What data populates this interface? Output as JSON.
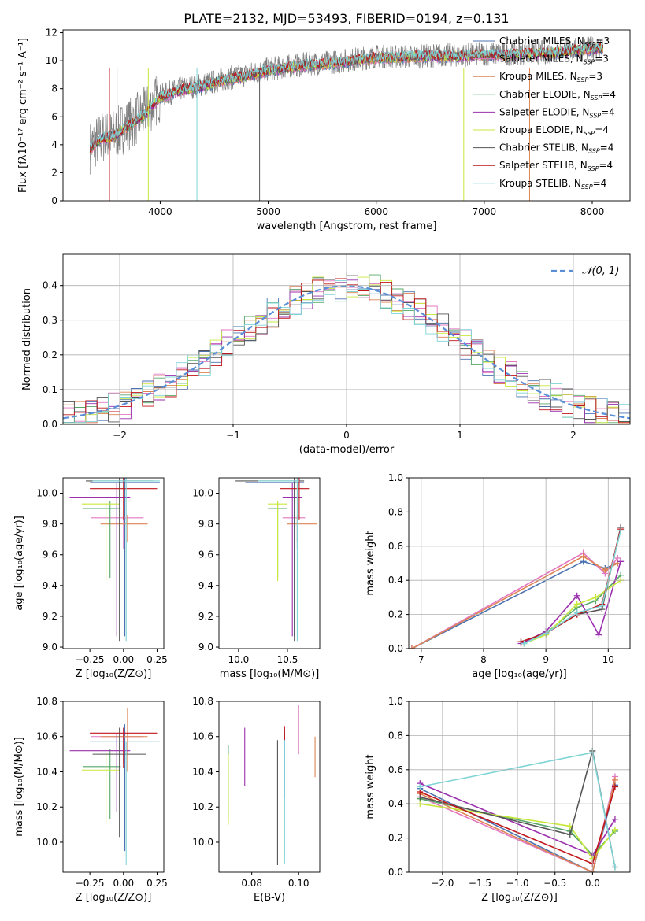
{
  "figure_title": "PLATE=2132, MJD=53493, FIBERID=0194, z=0.131",
  "series_legend": [
    {
      "name": "Chabrier MILES, N_SSP=3",
      "base": "Chabrier MILES, N",
      "sub": "SSP",
      "tail": "=3",
      "color": "#4c72b0"
    },
    {
      "name": "Salpeter MILES, N_SSP=3",
      "base": "Salpeter MILES, N",
      "sub": "SSP",
      "tail": "=3",
      "color": "#e377c2"
    },
    {
      "name": "Kroupa MILES, N_SSP=3",
      "base": "Kroupa MILES, N",
      "sub": "SSP",
      "tail": "=3",
      "color": "#dd8452"
    },
    {
      "name": "Chabrier ELODIE, N_SSP=4",
      "base": "Chabrier ELODIE, N",
      "sub": "SSP",
      "tail": "=4",
      "color": "#55a868"
    },
    {
      "name": "Salpeter ELODIE, N_SSP=4",
      "base": "Salpeter ELODIE, N",
      "sub": "SSP",
      "tail": "=4",
      "color": "#9b2fae"
    },
    {
      "name": "Kroupa ELODIE, N_SSP=4",
      "base": "Kroupa ELODIE, N",
      "sub": "SSP",
      "tail": "=4",
      "color": "#c8e83c"
    },
    {
      "name": "Chabrier STELIB, N_SSP=4",
      "base": "Chabrier STELIB, N",
      "sub": "SSP",
      "tail": "=4",
      "color": "#555555"
    },
    {
      "name": "Salpeter STELIB, N_SSP=4",
      "base": "Salpeter STELIB, N",
      "sub": "SSP",
      "tail": "=4",
      "color": "#c0151b"
    },
    {
      "name": "Kroupa STELIB, N_SSP=4",
      "base": "Kroupa STELIB, N",
      "sub": "SSP",
      "tail": "=4",
      "color": "#7fd4d6"
    }
  ],
  "chart_data": [
    {
      "id": "spectrum",
      "type": "line",
      "xlabel": "wavelength [Angstrom, rest frame]",
      "ylabel": "Flux [fλ10⁻¹⁷ erg cm⁻² s⁻¹ A⁻¹]",
      "xlim": [
        3100,
        8350
      ],
      "ylim": [
        0,
        12.2
      ],
      "xticks": [
        4000,
        5000,
        6000,
        7000,
        8000
      ],
      "yticks": [
        0,
        2,
        4,
        6,
        8,
        10,
        12
      ],
      "grid": false,
      "legend_position": "right",
      "data_series": {
        "name": "data",
        "color": "#808080",
        "x": [
          3350,
          3450,
          3550,
          3700,
          3850,
          4000,
          4200,
          4400,
          4600,
          4800,
          5000,
          5200,
          5400,
          5600,
          5800,
          6000,
          6200,
          6400,
          6600,
          6800,
          7000,
          7200,
          7400,
          7600,
          7800,
          8000,
          8100
        ],
        "y": [
          3.8,
          4.5,
          4.6,
          5.4,
          6.2,
          7.5,
          8.0,
          8.3,
          8.7,
          9.0,
          9.4,
          9.6,
          9.8,
          9.9,
          10.1,
          10.3,
          10.3,
          10.3,
          10.4,
          10.4,
          10.5,
          10.5,
          10.6,
          10.6,
          10.8,
          10.9,
          11.0
        ]
      },
      "model_x": [
        3350,
        3450,
        3550,
        3700,
        3850,
        4000,
        4200,
        4400,
        4600,
        4800,
        5000,
        5200,
        5400,
        5600,
        5800,
        6000,
        6200,
        6400,
        6600,
        6800,
        7000,
        7200,
        7400,
        7600,
        7800,
        8000,
        8100
      ],
      "model_y": [
        3.7,
        4.4,
        4.5,
        5.3,
        6.1,
        7.4,
        7.9,
        8.2,
        8.6,
        8.9,
        9.3,
        9.5,
        9.7,
        9.8,
        10.0,
        10.2,
        10.2,
        10.3,
        10.3,
        10.3,
        10.4,
        10.4,
        10.5,
        10.5,
        10.7,
        10.8,
        10.9
      ]
    },
    {
      "id": "residuals",
      "type": "histogram",
      "xlabel": "(data-model)/error",
      "ylabel": "Normed distribution",
      "xlim": [
        -2.5,
        2.5
      ],
      "ylim": [
        0,
        0.49
      ],
      "xticks": [
        -2,
        -1,
        0,
        1,
        2
      ],
      "yticks": [
        0.0,
        0.1,
        0.2,
        0.3,
        0.4
      ],
      "grid": true,
      "legend_position": "top-right",
      "normal_curve": {
        "name": "N(0,1)",
        "mean": 0,
        "sigma": 1,
        "color": "#5a8fd8"
      },
      "bin_width": 0.1,
      "bin_start": -2.5
    },
    {
      "id": "age-vs-Z",
      "type": "errorbar",
      "xlabel": "Z [log10(Z/Z⊙)]",
      "ylabel": "age [log10(age/yr)]",
      "xlim": [
        -0.45,
        0.3
      ],
      "ylim": [
        8.99,
        10.1
      ],
      "xticks": [
        -0.25,
        0.0,
        0.25
      ],
      "yticks": [
        9.0,
        9.2,
        9.4,
        9.6,
        9.8,
        10.0
      ],
      "points": [
        {
          "x": 0.01,
          "y": 10.07,
          "xerr": [
            0.26,
            0.26
          ],
          "yerr": [
            1.0,
            0.04
          ],
          "series": 0
        },
        {
          "x": 0.0,
          "y": 9.84,
          "xerr": [
            0.24,
            0.15
          ],
          "yerr": [
            0.2,
            0.0
          ],
          "series": 1
        },
        {
          "x": 0.03,
          "y": 9.8,
          "xerr": [
            0.2,
            0.15
          ],
          "yerr": [
            0.12,
            0.06
          ],
          "series": 2
        },
        {
          "x": -0.1,
          "y": 9.9,
          "xerr": [
            0.2,
            0.08
          ],
          "yerr": [
            0.45,
            0.05
          ],
          "series": 3
        },
        {
          "x": -0.05,
          "y": 9.97,
          "xerr": [
            0.35,
            0.1
          ],
          "yerr": [
            0.9,
            0.1
          ],
          "series": 4
        },
        {
          "x": -0.13,
          "y": 9.93,
          "xerr": [
            0.18,
            0.1
          ],
          "yerr": [
            0.5,
            0.02
          ],
          "series": 5
        },
        {
          "x": -0.03,
          "y": 10.08,
          "xerr": [
            0.25,
            0.25
          ],
          "yerr": [
            1.04,
            0.02
          ],
          "series": 6
        },
        {
          "x": 0.0,
          "y": 10.03,
          "xerr": [
            0.25,
            0.25
          ],
          "yerr": [
            0.2,
            0.07
          ],
          "series": 7
        },
        {
          "x": 0.02,
          "y": 10.08,
          "xerr": [
            0.25,
            0.25
          ],
          "yerr": [
            1.04,
            0.02
          ],
          "series": 8
        }
      ]
    },
    {
      "id": "age-vs-mass",
      "type": "errorbar",
      "xlabel": "mass [log10(M/M⊙)]",
      "ylabel": "",
      "xlim": [
        9.8,
        10.83
      ],
      "ylim": [
        8.99,
        10.1
      ],
      "xticks": [
        10.0,
        10.5
      ],
      "yticks": [
        9.0,
        9.2,
        9.4,
        9.6,
        9.8,
        10.0
      ],
      "points": [
        {
          "x": 10.57,
          "y": 10.07,
          "xerr": [
            0.5,
            0.1
          ],
          "yerr": [
            1.0,
            0.04
          ],
          "series": 0
        },
        {
          "x": 10.6,
          "y": 9.84,
          "xerr": [
            0.15,
            0.08
          ],
          "yerr": [
            0.2,
            0.0
          ],
          "series": 1
        },
        {
          "x": 10.6,
          "y": 9.8,
          "xerr": [
            0.1,
            0.2
          ],
          "yerr": [
            0.12,
            0.06
          ],
          "series": 2
        },
        {
          "x": 10.4,
          "y": 9.9,
          "xerr": [
            0.1,
            0.1
          ],
          "yerr": [
            0.45,
            0.05
          ],
          "series": 3
        },
        {
          "x": 10.55,
          "y": 9.97,
          "xerr": [
            0.1,
            0.1
          ],
          "yerr": [
            0.9,
            0.1
          ],
          "series": 4
        },
        {
          "x": 10.4,
          "y": 9.93,
          "xerr": [
            0.1,
            0.1
          ],
          "yerr": [
            0.5,
            0.02
          ],
          "series": 5
        },
        {
          "x": 10.57,
          "y": 10.08,
          "xerr": [
            0.6,
            0.1
          ],
          "yerr": [
            1.04,
            0.02
          ],
          "series": 6
        },
        {
          "x": 10.62,
          "y": 10.03,
          "xerr": [
            0.2,
            0.1
          ],
          "yerr": [
            0.2,
            0.07
          ],
          "series": 7
        },
        {
          "x": 10.6,
          "y": 10.08,
          "xerr": [
            0.4,
            0.02
          ],
          "yerr": [
            1.04,
            0.02
          ],
          "series": 8
        }
      ]
    },
    {
      "id": "weight-vs-age",
      "type": "line",
      "xlabel": "age [log10(age/yr)]",
      "ylabel": "mass weight",
      "xlim": [
        6.8,
        10.35
      ],
      "ylim": [
        0,
        1.0
      ],
      "xticks": [
        7,
        8,
        9,
        10
      ],
      "yticks": [
        0.0,
        0.2,
        0.4,
        0.6,
        0.8,
        1.0
      ],
      "grid": true,
      "series": [
        {
          "x": [
            6.85,
            9.6,
            9.95,
            10.15
          ],
          "y": [
            0.0,
            0.51,
            0.47,
            0.5
          ],
          "series": 0
        },
        {
          "x": [
            6.85,
            9.6,
            9.95,
            10.15
          ],
          "y": [
            0.0,
            0.56,
            0.44,
            0.53
          ],
          "series": 1
        },
        {
          "x": [
            6.85,
            9.6,
            9.95,
            10.15
          ],
          "y": [
            0.0,
            0.54,
            0.46,
            0.5
          ],
          "series": 2
        },
        {
          "x": [
            8.65,
            9.0,
            9.5,
            9.8,
            10.2
          ],
          "y": [
            0.03,
            0.09,
            0.24,
            0.28,
            0.43
          ],
          "series": 3
        },
        {
          "x": [
            8.6,
            9.0,
            9.5,
            9.85,
            10.2
          ],
          "y": [
            0.03,
            0.1,
            0.31,
            0.08,
            0.51
          ],
          "series": 4
        },
        {
          "x": [
            8.65,
            9.0,
            9.5,
            9.8,
            10.2
          ],
          "y": [
            0.03,
            0.08,
            0.26,
            0.3,
            0.4
          ],
          "series": 5
        },
        {
          "x": [
            8.6,
            9.0,
            9.5,
            9.9,
            10.2
          ],
          "y": [
            0.04,
            0.09,
            0.2,
            0.23,
            0.71
          ],
          "series": 6
        },
        {
          "x": [
            8.6,
            9.0,
            9.5,
            9.9,
            10.2
          ],
          "y": [
            0.04,
            0.09,
            0.2,
            0.26,
            0.7
          ],
          "series": 7
        },
        {
          "x": [
            8.65,
            9.0,
            9.5,
            9.9,
            10.2
          ],
          "y": [
            0.03,
            0.09,
            0.21,
            0.25,
            0.69
          ],
          "series": 8
        }
      ]
    },
    {
      "id": "mass-vs-Z",
      "type": "errorbar",
      "xlabel": "Z [log10(Z/Z⊙)]",
      "ylabel": "mass [log10(M/M⊙)]",
      "xlim": [
        -0.45,
        0.3
      ],
      "ylim": [
        9.83,
        10.8
      ],
      "xticks": [
        -0.25,
        0.0,
        0.25
      ],
      "yticks": [
        10.0,
        10.2,
        10.4,
        10.6,
        10.8
      ],
      "points": [
        {
          "x": 0.01,
          "y": 10.57,
          "xerr": [
            0.26,
            0.26
          ],
          "yerr": [
            0.62,
            0.1
          ],
          "series": 0
        },
        {
          "x": 0.0,
          "y": 10.6,
          "xerr": [
            0.24,
            0.15
          ],
          "yerr": [
            0.15,
            0.05
          ],
          "series": 1
        },
        {
          "x": 0.03,
          "y": 10.6,
          "xerr": [
            0.2,
            0.15
          ],
          "yerr": [
            0.2,
            0.16
          ],
          "series": 2
        },
        {
          "x": -0.1,
          "y": 10.43,
          "xerr": [
            0.2,
            0.08
          ],
          "yerr": [
            0.3,
            0.1
          ],
          "series": 3
        },
        {
          "x": -0.05,
          "y": 10.52,
          "xerr": [
            0.35,
            0.1
          ],
          "yerr": [
            0.35,
            0.1
          ],
          "series": 4
        },
        {
          "x": -0.13,
          "y": 10.41,
          "xerr": [
            0.18,
            0.1
          ],
          "yerr": [
            0.3,
            0.1
          ],
          "series": 5
        },
        {
          "x": -0.03,
          "y": 10.5,
          "xerr": [
            0.2,
            0.2
          ],
          "yerr": [
            0.47,
            0.15
          ],
          "series": 6
        },
        {
          "x": 0.0,
          "y": 10.62,
          "xerr": [
            0.25,
            0.25
          ],
          "yerr": [
            0.2,
            0.03
          ],
          "series": 7
        },
        {
          "x": 0.02,
          "y": 10.57,
          "xerr": [
            0.25,
            0.25
          ],
          "yerr": [
            0.7,
            0.0
          ],
          "series": 8
        }
      ]
    },
    {
      "id": "mass-vs-EBV",
      "type": "errorbar",
      "xlabel": "E(B-V)",
      "ylabel": "",
      "xlim": [
        0.066,
        0.109
      ],
      "ylim": [
        9.83,
        10.8
      ],
      "xticks": [
        0.08,
        0.1
      ],
      "yticks": [
        10.0,
        10.2,
        10.4,
        10.6,
        10.8
      ],
      "points": [
        {
          "x": 0.094,
          "y": 10.5,
          "xerr": [
            0,
            0
          ],
          "yerr": [
            0.25,
            0.13
          ],
          "series": 0
        },
        {
          "x": 0.1,
          "y": 10.6,
          "xerr": [
            0,
            0
          ],
          "yerr": [
            0.1,
            0.18
          ],
          "series": 1
        },
        {
          "x": 0.107,
          "y": 10.5,
          "xerr": [
            0,
            0
          ],
          "yerr": [
            0.13,
            0.1
          ],
          "series": 2
        },
        {
          "x": 0.07,
          "y": 10.42,
          "xerr": [
            0,
            0
          ],
          "yerr": [
            0.3,
            0.13
          ],
          "series": 3
        },
        {
          "x": 0.077,
          "y": 10.48,
          "xerr": [
            0,
            0
          ],
          "yerr": [
            0.16,
            0.17
          ],
          "series": 4
        },
        {
          "x": 0.07,
          "y": 10.3,
          "xerr": [
            0,
            0
          ],
          "yerr": [
            0.2,
            0.2
          ],
          "series": 5
        },
        {
          "x": 0.091,
          "y": 10.2,
          "xerr": [
            0,
            0
          ],
          "yerr": [
            0.33,
            0.38
          ],
          "series": 6
        },
        {
          "x": 0.094,
          "y": 10.6,
          "xerr": [
            0,
            0
          ],
          "yerr": [
            0.02,
            0.06
          ],
          "series": 7
        },
        {
          "x": 0.094,
          "y": 10.3,
          "xerr": [
            0,
            0
          ],
          "yerr": [
            0.42,
            0.28
          ],
          "series": 8
        }
      ]
    },
    {
      "id": "weight-vs-Z",
      "type": "line",
      "xlabel": "Z [log10(Z/Z⊙)]",
      "ylabel": "mass weight",
      "xlim": [
        -2.45,
        0.5
      ],
      "ylim": [
        0,
        1.0
      ],
      "xticks": [
        -2.0,
        -1.5,
        -1.0,
        -0.5,
        0.0
      ],
      "yticks": [
        0.0,
        0.2,
        0.4,
        0.6,
        0.8,
        1.0
      ],
      "grid": true,
      "series": [
        {
          "x": [
            -2.3,
            0.0,
            0.3
          ],
          "y": [
            0.49,
            0.0,
            0.51
          ],
          "series": 0
        },
        {
          "x": [
            -2.3,
            0.0,
            0.3
          ],
          "y": [
            0.44,
            0.0,
            0.56
          ],
          "series": 1
        },
        {
          "x": [
            -2.3,
            0.0,
            0.3
          ],
          "y": [
            0.46,
            0.0,
            0.54
          ],
          "series": 2
        },
        {
          "x": [
            -2.3,
            -0.3,
            0.0,
            0.3
          ],
          "y": [
            0.43,
            0.24,
            0.1,
            0.24
          ],
          "series": 3
        },
        {
          "x": [
            -2.3,
            0.0,
            0.3
          ],
          "y": [
            0.52,
            0.1,
            0.31
          ],
          "series": 4
        },
        {
          "x": [
            -2.3,
            -0.3,
            0.0,
            0.3
          ],
          "y": [
            0.4,
            0.27,
            0.08,
            0.25
          ],
          "series": 5
        },
        {
          "x": [
            -2.3,
            -0.3,
            0.0,
            0.3
          ],
          "y": [
            0.44,
            0.22,
            0.71,
            0.03
          ],
          "series": 6
        },
        {
          "x": [
            -2.3,
            0.0,
            0.3
          ],
          "y": [
            0.47,
            0.05,
            0.5
          ],
          "series": 7
        },
        {
          "x": [
            -2.3,
            0.0,
            0.3
          ],
          "y": [
            0.5,
            0.7,
            0.03
          ],
          "series": 8
        }
      ]
    }
  ]
}
